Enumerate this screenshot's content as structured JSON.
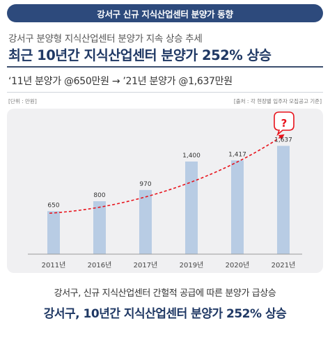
{
  "header": {
    "banner": "강서구 신규 지식산업센터 분양가 동향"
  },
  "subtitle": "강서구 분양형 지식산업센터 분양가 지속 상승 추세",
  "headline": "최근 10년간 지식산업센터 분양가 252% 상승",
  "price_line": "‘11년 분양가 @650만원 → ’21년 분양가 @1,637만원",
  "unit_label": "[단위 : 만원]",
  "source_label": "[출처 : 각 현장별 입주자 모집공고 기준]",
  "chart_data": {
    "type": "bar",
    "categories": [
      "2011년",
      "2016년",
      "2017년",
      "2019년",
      "2020년",
      "2021년"
    ],
    "values": [
      650,
      800,
      970,
      1400,
      1417,
      1637
    ],
    "value_labels": [
      "650",
      "800",
      "970",
      "1,400",
      "1,417",
      "1,637"
    ],
    "title": "",
    "xlabel": "",
    "ylabel": "",
    "ylim": [
      0,
      2200
    ],
    "grid": false,
    "bar_color": "#b8cce4",
    "trend_color": "#e8121b",
    "annotation_glyph": "?"
  },
  "footer": {
    "line1": "강서구, 신규 지식산업센터 간헐적 공급에 따른 분양가 급상승",
    "line2": "강서구, 10년간 지식산업센터 분양가 252% 상승"
  }
}
